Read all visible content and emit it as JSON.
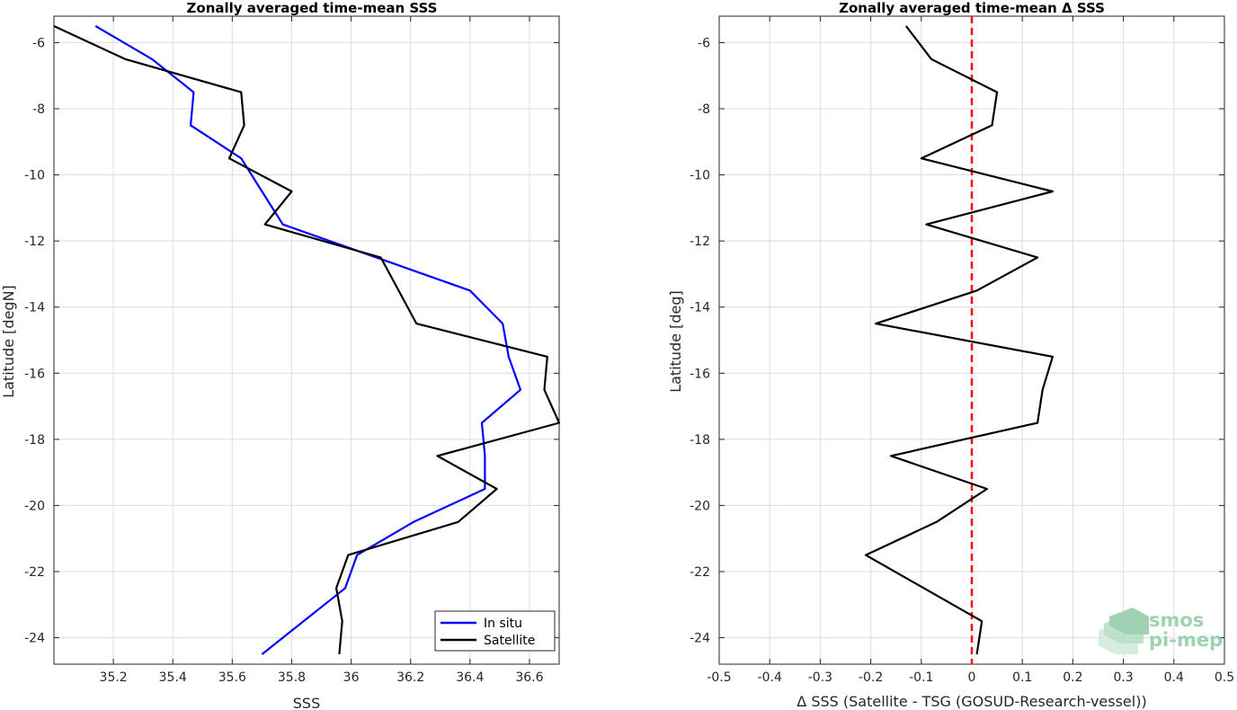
{
  "colors": {
    "in_situ": "#0000ff",
    "satellite": "#000000",
    "zero_line": "#ff0000",
    "grid": "#dcdcdc",
    "logo": "#8fc9a6"
  },
  "chart_data": [
    {
      "type": "line",
      "orientation": "horizontal-x-values / vertical-y-latitude",
      "title": "Zonally averaged time-mean SSS",
      "xlabel": "SSS",
      "ylabel": "Latitude [degN]",
      "xlim": [
        35.0,
        36.7
      ],
      "ylim": [
        -24.8,
        -5.2
      ],
      "xticks": [
        35.2,
        35.4,
        35.6,
        35.8,
        36.0,
        36.2,
        36.4,
        36.6
      ],
      "xtick_labels": [
        "35.2",
        "35.4",
        "35.6",
        "35.8",
        "36",
        "36.2",
        "36.4",
        "36.6"
      ],
      "yticks": [
        -6,
        -8,
        -10,
        -12,
        -14,
        -16,
        -18,
        -20,
        -22,
        -24
      ],
      "ytick_labels": [
        "-6",
        "-8",
        "-10",
        "-12",
        "-14",
        "-16",
        "-18",
        "-20",
        "-22",
        "-24"
      ],
      "grid": true,
      "legend_position": "bottom-right",
      "series": [
        {
          "name": "In situ",
          "color": "#0000ff",
          "x": [
            35.14,
            35.33,
            35.47,
            35.46,
            35.63,
            35.7,
            35.77,
            36.4,
            36.51,
            36.53,
            36.57,
            36.44,
            36.45,
            36.45,
            36.21,
            36.02,
            35.98,
            35.7
          ],
          "y": [
            -5.5,
            -6.5,
            -7.5,
            -8.5,
            -9.5,
            -10.5,
            -11.5,
            -13.5,
            -14.5,
            -15.5,
            -16.5,
            -17.5,
            -18.5,
            -19.5,
            -20.5,
            -21.5,
            -22.5,
            -24.5
          ]
        },
        {
          "name": "Satellite",
          "color": "#000000",
          "x": [
            35.0,
            35.24,
            35.63,
            35.64,
            35.59,
            35.8,
            35.71,
            36.1,
            36.22,
            36.66,
            36.65,
            36.7,
            36.29,
            36.49,
            36.36,
            35.99,
            35.95,
            35.97,
            35.96
          ],
          "y": [
            -5.5,
            -6.5,
            -7.5,
            -8.5,
            -9.5,
            -10.5,
            -11.5,
            -12.5,
            -14.5,
            -15.5,
            -16.5,
            -17.5,
            -18.5,
            -19.5,
            -20.5,
            -21.5,
            -22.5,
            -23.5,
            -24.5
          ]
        }
      ]
    },
    {
      "type": "line",
      "orientation": "horizontal-x-values / vertical-y-latitude",
      "title": "Zonally averaged time-mean Δ SSS",
      "xlabel": "Δ SSS (Satellite - TSG (GOSUD-Research-vessel))",
      "ylabel": "Latitude [deg]",
      "xlim": [
        -0.5,
        0.5
      ],
      "ylim": [
        -24.8,
        -5.2
      ],
      "xticks": [
        -0.5,
        -0.4,
        -0.3,
        -0.2,
        -0.1,
        0,
        0.1,
        0.2,
        0.3,
        0.4,
        0.5
      ],
      "xtick_labels": [
        "-0.5",
        "-0.4",
        "-0.3",
        "-0.2",
        "-0.1",
        "0",
        "0.1",
        "0.2",
        "0.3",
        "0.4",
        "0.5"
      ],
      "yticks": [
        -6,
        -8,
        -10,
        -12,
        -14,
        -16,
        -18,
        -20,
        -22,
        -24
      ],
      "ytick_labels": [
        "-6",
        "-8",
        "-10",
        "-12",
        "-14",
        "-16",
        "-18",
        "-20",
        "-22",
        "-24"
      ],
      "grid": true,
      "reference_line": {
        "x": 0,
        "style": "dashed",
        "color": "#ff0000"
      },
      "series": [
        {
          "color": "#000000",
          "x": [
            -0.13,
            -0.08,
            0.05,
            0.04,
            -0.1,
            0.16,
            -0.09,
            0.13,
            0.01,
            -0.19,
            0.16,
            0.14,
            0.13,
            -0.16,
            0.03,
            -0.07,
            -0.21,
            0.02,
            0.01
          ],
          "y": [
            -5.5,
            -6.5,
            -7.5,
            -8.5,
            -9.5,
            -10.5,
            -11.5,
            -12.5,
            -13.5,
            -14.5,
            -15.5,
            -16.5,
            -17.5,
            -18.5,
            -19.5,
            -20.5,
            -21.5,
            -23.5,
            -24.5
          ]
        }
      ]
    }
  ],
  "watermark": {
    "line1": "smos",
    "line2": "pi-mep"
  }
}
